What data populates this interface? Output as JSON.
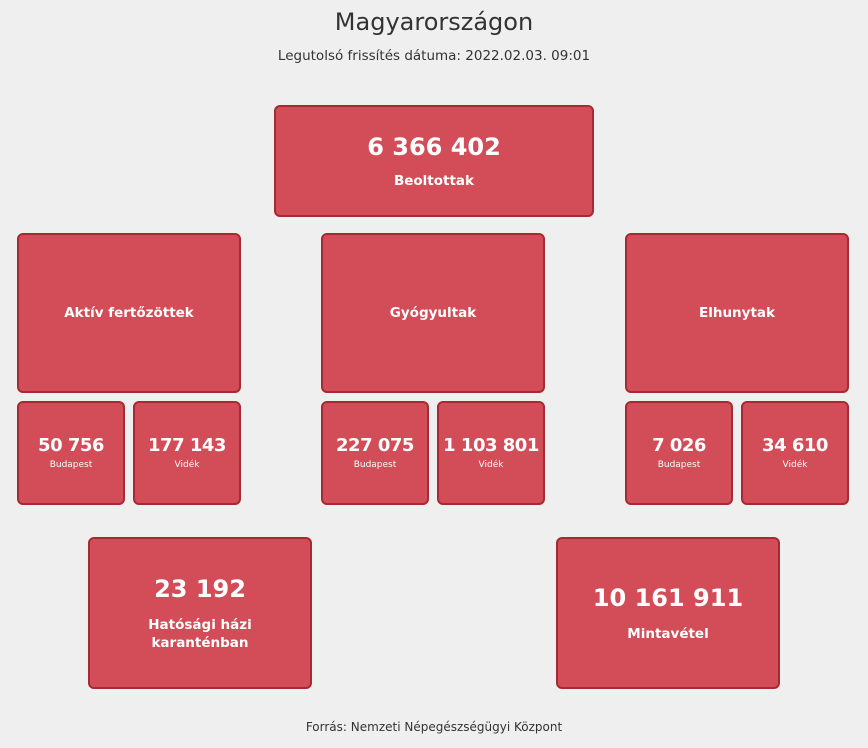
{
  "header": {
    "title": "Magyarországon",
    "subtitle": "Legutolsó frissítés dátuma: 2022.02.03. 09:01"
  },
  "vaccinated": {
    "value": "6 366 402",
    "label": "Beoltottak"
  },
  "categories": [
    {
      "label": "Aktív fertőzöttek",
      "budapest": {
        "value": "50 756",
        "label": "Budapest"
      },
      "videk": {
        "value": "177 143",
        "label": "Vidék"
      }
    },
    {
      "label": "Gyógyultak",
      "budapest": {
        "value": "227 075",
        "label": "Budapest"
      },
      "videk": {
        "value": "1 103 801",
        "label": "Vidék"
      }
    },
    {
      "label": "Elhunytak",
      "budapest": {
        "value": "7 026",
        "label": "Budapest"
      },
      "videk": {
        "value": "34 610",
        "label": "Vidék"
      }
    }
  ],
  "quarantine": {
    "value": "23 192",
    "label": "Hatósági házi karanténban"
  },
  "sampling": {
    "value": "10 161 911",
    "label": "Mintavétel"
  },
  "footer": {
    "source": "Forrás: Nemzeti Népegészségügyi Központ"
  },
  "colors": {
    "box_fill": "#d24d57",
    "box_border": "#a52a31",
    "background": "#efefef"
  }
}
